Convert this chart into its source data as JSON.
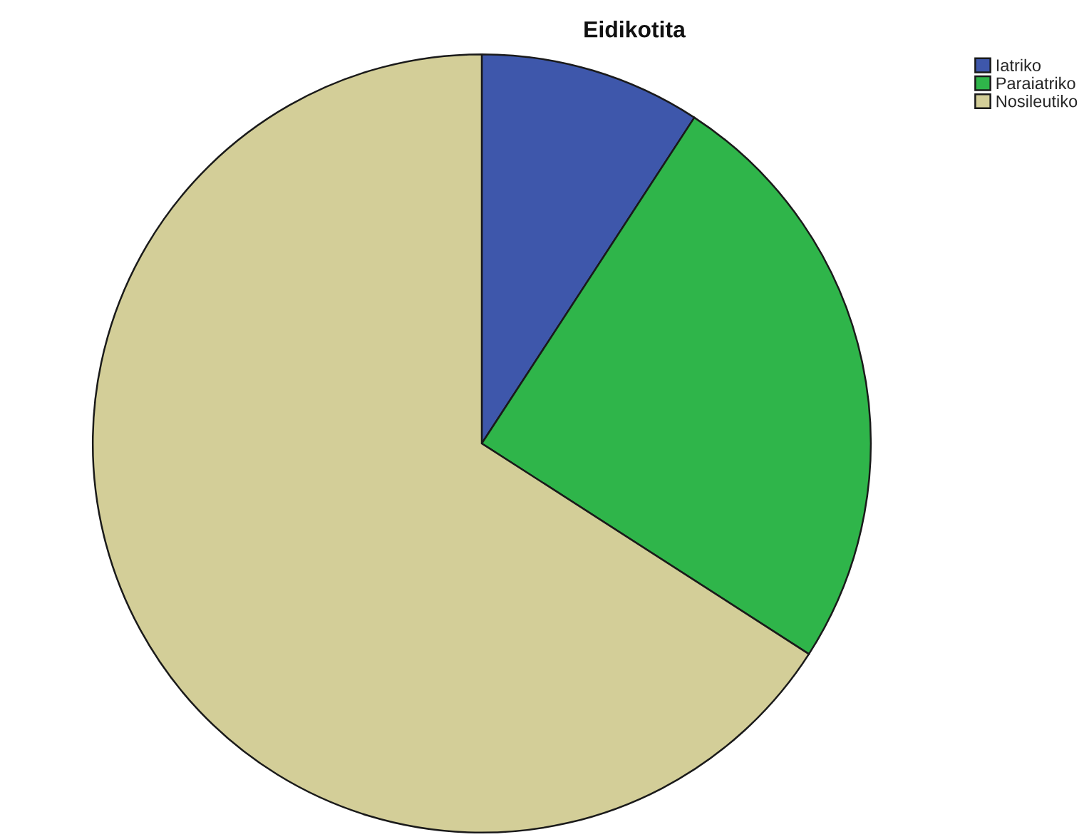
{
  "chart_data": {
    "type": "pie",
    "title": "Eidikotita",
    "categories": [
      "Iatriko",
      "Paraiatriko",
      "Nosileutiko"
    ],
    "values": [
      9.2,
      24.9,
      65.9
    ],
    "colors": [
      "#3e57ab",
      "#2fb54a",
      "#d3ce98"
    ],
    "legend": "top right"
  }
}
